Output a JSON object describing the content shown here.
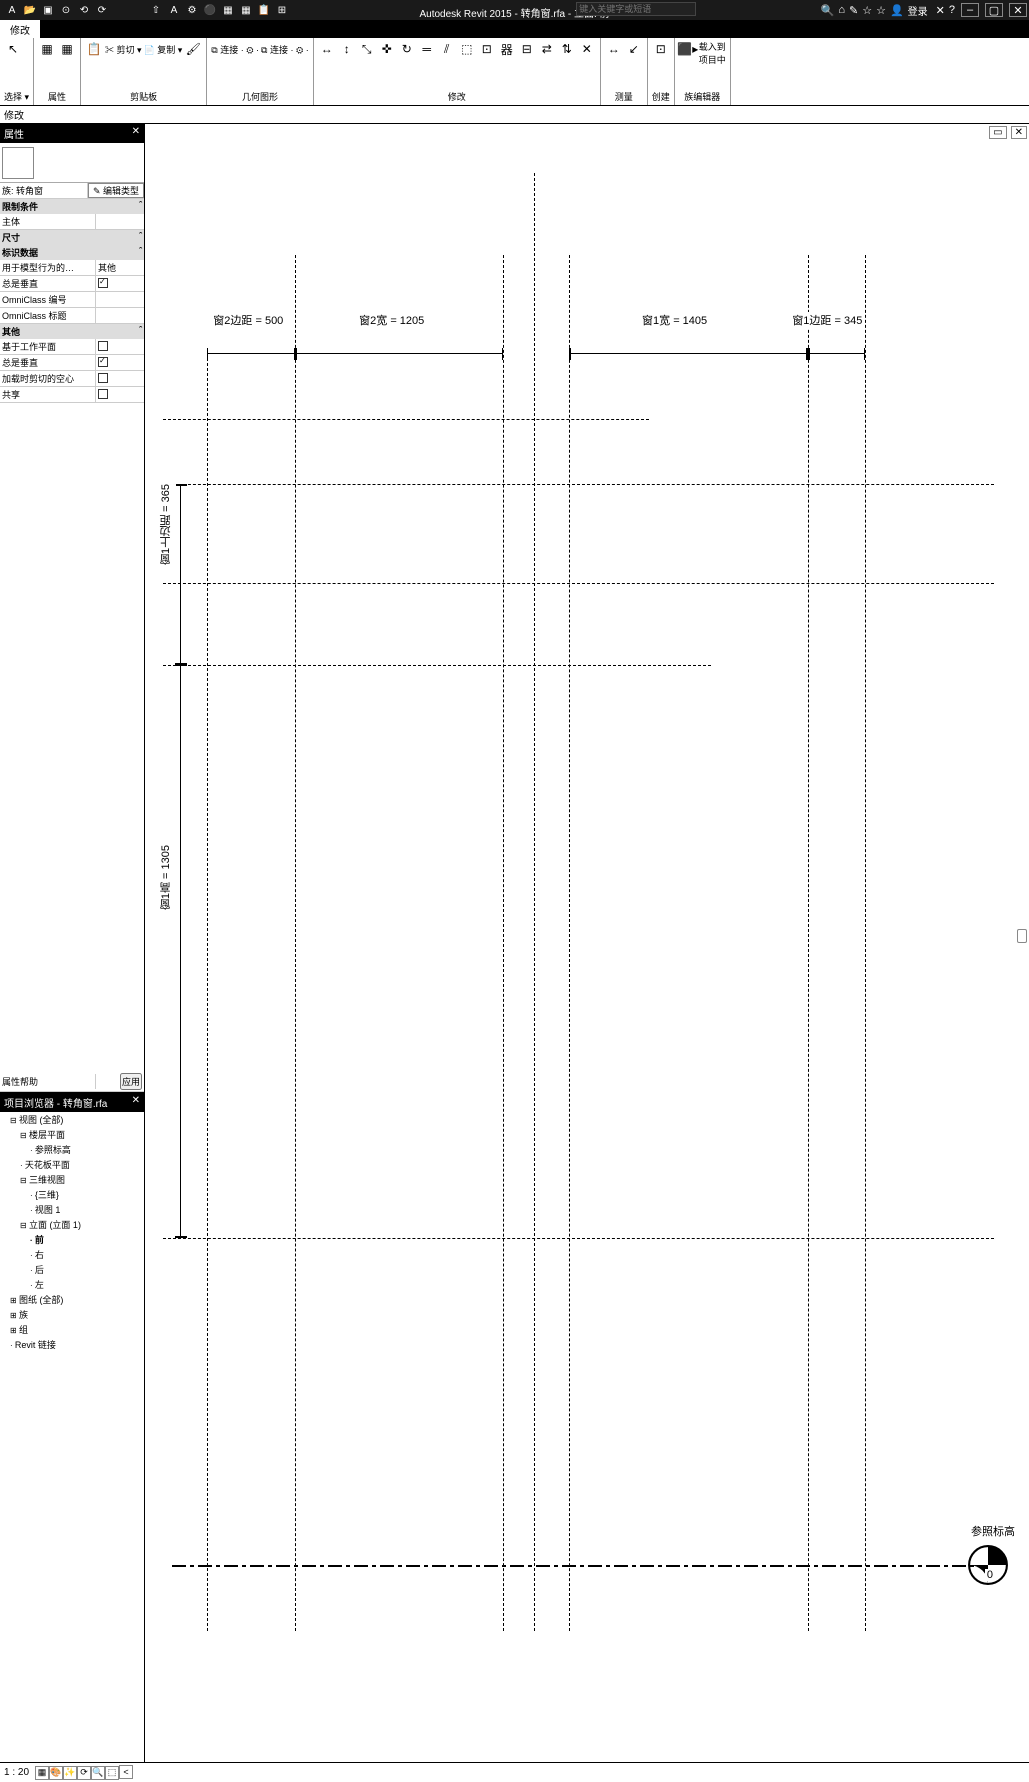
{
  "titlebar": {
    "app_title": "Autodesk Revit 2015 -",
    "doc_title": "转角窗.rfa - 立面: 前",
    "search_placeholder": "键入关键字或短语",
    "login_label": "登录",
    "help_glyph": "?"
  },
  "qat": [
    "A",
    "📂",
    "▣",
    "⊙",
    "⟲",
    "⟳",
    "",
    "",
    "⇧",
    "A",
    "⚙",
    "⚫",
    "▦",
    "▦",
    "📋",
    "⊞"
  ],
  "title_right_icons": [
    "🔍",
    "⌂",
    "✎",
    "☆",
    "☆",
    "👤",
    "",
    "✕",
    "?"
  ],
  "win_buttons": [
    "–",
    "▢",
    "✕"
  ],
  "ribbon": {
    "active_tab": "修改",
    "panels": [
      {
        "name": "选择",
        "label": "选择 ▾",
        "icons": [
          "↖"
        ]
      },
      {
        "name": "属性",
        "label": "属性",
        "icons": [
          "▦",
          "▦"
        ]
      },
      {
        "name": "剪贴板",
        "label": "剪贴板",
        "icons": [
          "📋",
          "✂ 剪切 ▾",
          "📄 复制 ▾",
          "🖌"
        ]
      },
      {
        "name": "几何图形",
        "label": "几何图形",
        "icons": [
          "⧉ 连接 · ⚙ ·",
          "⧉ 连接 · ⚙ ·"
        ]
      },
      {
        "name": "修改",
        "label": "修改",
        "icons": [
          "↔",
          "↕",
          "⤡",
          "✜",
          "↻",
          "═",
          "⫽",
          "⬚",
          "⊡",
          "器",
          "⊟",
          "⇄",
          "⇅",
          "✕"
        ]
      },
      {
        "name": "测量",
        "label": "测量",
        "icons": [
          "↔",
          "↙"
        ]
      },
      {
        "name": "创建",
        "label": "创建",
        "icons": [
          "⊡"
        ]
      },
      {
        "name": "族编辑器",
        "label": "族编辑器",
        "big_label": "载入到\n项目中",
        "icons": [
          "⬛▸"
        ]
      }
    ]
  },
  "optbar": {
    "label": "修改"
  },
  "properties": {
    "title": "属性",
    "family_label": "",
    "type_sel": "族: 转角窗",
    "edit_type": "✎ 编辑类型",
    "groups": [
      {
        "name": "限制条件",
        "rows": [
          [
            "主体",
            ""
          ]
        ]
      },
      {
        "name": "尺寸",
        "rows": []
      },
      {
        "name": "标识数据",
        "rows": [
          [
            "用于模型行为的…",
            "其他"
          ],
          [
            "总是垂直",
            "chk:on"
          ],
          [
            "OmniClass 编号",
            ""
          ],
          [
            "OmniClass 标题",
            ""
          ]
        ]
      },
      {
        "name": "其他",
        "rows": [
          [
            "基于工作平面",
            "chk:off"
          ],
          [
            "总是垂直",
            "chk:on"
          ],
          [
            "加载时剪切的空心",
            "chk:off"
          ],
          [
            "共享",
            "chk:off"
          ]
        ]
      }
    ],
    "help_label": "属性帮助",
    "apply_label": "应用"
  },
  "browser": {
    "title": "项目浏览器 - 转角窗.rfa",
    "tree": [
      {
        "l": "视图 (全部)",
        "open": true,
        "kids": [
          {
            "l": "楼层平面",
            "open": true,
            "kids": [
              {
                "l": "参照标高",
                "leaf": true
              }
            ]
          },
          {
            "l": "天花板平面",
            "leaf": true
          },
          {
            "l": "三维视图",
            "open": true,
            "kids": [
              {
                "l": "{三维}",
                "leaf": true
              },
              {
                "l": "视图 1",
                "leaf": true
              }
            ]
          },
          {
            "l": "立面 (立面 1)",
            "open": true,
            "kids": [
              {
                "l": "前",
                "leaf": true,
                "bold": true
              },
              {
                "l": "右",
                "leaf": true
              },
              {
                "l": "后",
                "leaf": true
              },
              {
                "l": "左",
                "leaf": true
              }
            ]
          }
        ]
      },
      {
        "l": "图纸 (全部)"
      },
      {
        "l": "族"
      },
      {
        "l": "组"
      },
      {
        "l": "Revit 链接",
        "leaf": true
      }
    ]
  },
  "drawing": {
    "dims": {
      "win2_edge": {
        "label": "窗2边距 = 500"
      },
      "win2_w": {
        "label": "窗2宽 = 1205"
      },
      "win1_w": {
        "label": "窗1宽 = 1405"
      },
      "win1_edge": {
        "label": "窗1边距 = 345"
      },
      "win1_top": {
        "label": "窗1上边距 = 365"
      },
      "win1_h": {
        "label": "窗1高 = 1305"
      }
    },
    "level_label": "参照标高",
    "level_value": "0"
  },
  "view_ctrl": {
    "scale": "1 : 20",
    "icons": [
      "▦",
      "🎨",
      "✨",
      "⟳",
      "🔍",
      "⬚",
      "<"
    ]
  },
  "canvas_tabs": [
    "▭",
    "✕"
  ]
}
